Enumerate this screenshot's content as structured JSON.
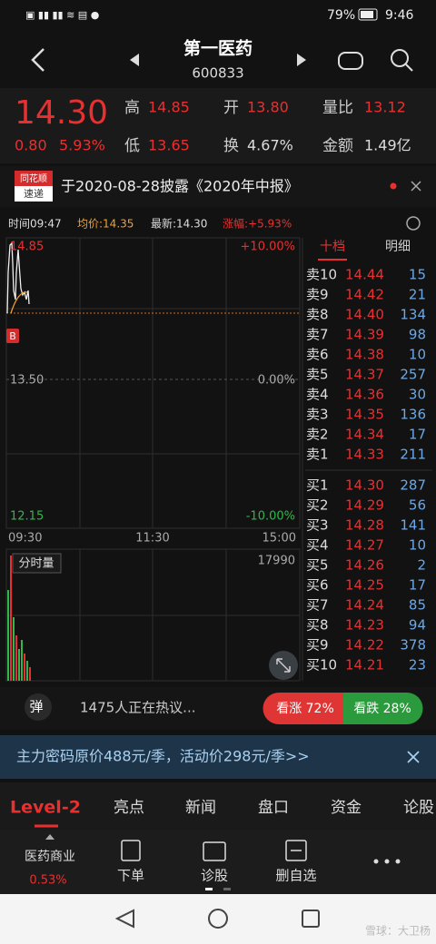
{
  "status_bar": {
    "battery": "79%",
    "time": "9:46"
  },
  "header": {
    "title": "第一医药",
    "code": "600833"
  },
  "quote": {
    "price": "14.30",
    "change": "0.80",
    "change_pct": "5.93%",
    "high_label": "高",
    "high": "14.85",
    "open_label": "开",
    "open": "13.80",
    "vol_ratio_label": "量比",
    "vol_ratio": "13.12",
    "low_label": "低",
    "low": "13.65",
    "turnover_label": "换",
    "turnover": "4.67%",
    "amount_label": "金额",
    "amount": "1.49亿"
  },
  "news": {
    "badge_top": "同花顺",
    "badge_bottom": "速递",
    "text": "于2020-08-28披露《2020年中报》"
  },
  "chart_info": {
    "time": "时间09:47",
    "avg": "均价:14.35",
    "latest": "最新:14.30",
    "change": "涨幅:+5.93%"
  },
  "price_chart": {
    "y_labels": [
      "14.85",
      "13.50",
      "12.15"
    ],
    "pct_labels": [
      "+10.00%",
      "0.00%",
      "-10.00%"
    ],
    "x_labels": [
      "09:30",
      "11:30",
      "15:00"
    ],
    "marker": "B",
    "volume_label": "分时量",
    "volume_max": "17990"
  },
  "order_book": {
    "tabs": [
      "十档",
      "明细"
    ],
    "sells": [
      [
        "卖10",
        "14.44",
        "15"
      ],
      [
        "卖9",
        "14.42",
        "21"
      ],
      [
        "卖8",
        "14.40",
        "134"
      ],
      [
        "卖7",
        "14.39",
        "98"
      ],
      [
        "卖6",
        "14.38",
        "10"
      ],
      [
        "卖5",
        "14.37",
        "257"
      ],
      [
        "卖4",
        "14.36",
        "30"
      ],
      [
        "卖3",
        "14.35",
        "136"
      ],
      [
        "卖2",
        "14.34",
        "17"
      ],
      [
        "卖1",
        "14.33",
        "211"
      ]
    ],
    "buys": [
      [
        "买1",
        "14.30",
        "287"
      ],
      [
        "买2",
        "14.29",
        "56"
      ],
      [
        "买3",
        "14.28",
        "141"
      ],
      [
        "买4",
        "14.27",
        "10"
      ],
      [
        "买5",
        "14.26",
        "2"
      ],
      [
        "买6",
        "14.25",
        "17"
      ],
      [
        "买7",
        "14.24",
        "85"
      ],
      [
        "买8",
        "14.23",
        "94"
      ],
      [
        "买9",
        "14.22",
        "378"
      ],
      [
        "买10",
        "14.21",
        "23"
      ]
    ]
  },
  "discussion": {
    "icon": "弹",
    "text": "1475人正在热议...",
    "bull": "看涨 72%",
    "bear": "看跌 28%"
  },
  "promo": {
    "text": "主力密码原价488元/季，活动价298元/季>>"
  },
  "tabs": [
    "Level-2",
    "亮点",
    "新闻",
    "盘口",
    "资金",
    "论股"
  ],
  "toolbar": {
    "sector": "医药商业",
    "sector_change": "0.53%",
    "buttons": [
      "下单",
      "诊股",
      "删自选"
    ]
  },
  "watermark": "雪球：大卫杨"
}
